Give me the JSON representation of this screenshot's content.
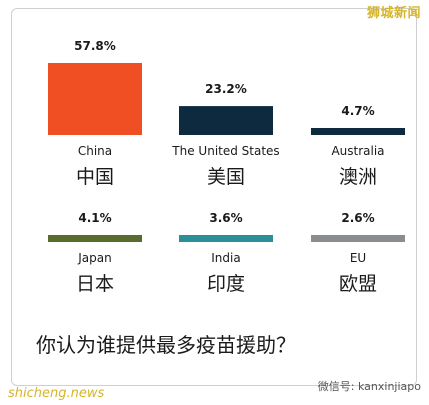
{
  "watermarks": {
    "top_right": "狮城新闻",
    "bottom_left": "shicheng.news",
    "bottom_right": "微信号: kanxinjiapo"
  },
  "chart_data": {
    "type": "bar",
    "question": "你认为谁提供最多疫苗援助？",
    "categories": [
      {
        "en": "China",
        "zh": "中国",
        "value": 57.8,
        "label": "57.8%",
        "color": "#f04e23"
      },
      {
        "en": "The United States",
        "zh": "美国",
        "value": 23.2,
        "label": "23.2%",
        "color": "#0e2a3f"
      },
      {
        "en": "Australia",
        "zh": "澳洲",
        "value": 4.7,
        "label": "4.7%",
        "color": "#0e2a3f"
      },
      {
        "en": "Japan",
        "zh": "日本",
        "value": 4.1,
        "label": "4.1%",
        "color": "#5a6b2f"
      },
      {
        "en": "India",
        "zh": "印度",
        "value": 3.6,
        "label": "3.6%",
        "color": "#2a8f96"
      },
      {
        "en": "EU",
        "zh": "欧盟",
        "value": 2.6,
        "label": "2.6%",
        "color": "#8a8d90"
      }
    ]
  }
}
